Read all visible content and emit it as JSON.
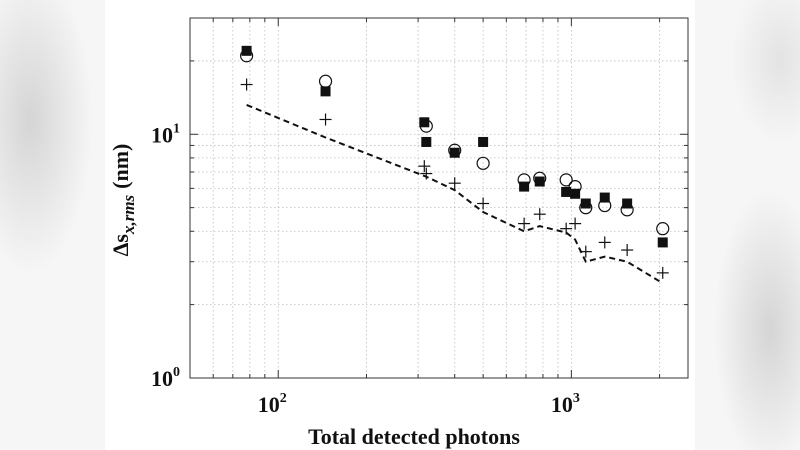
{
  "chart_data": {
    "type": "scatter",
    "xscale": "log",
    "yscale": "log",
    "xlim": [
      50,
      2500
    ],
    "ylim": [
      1,
      30
    ],
    "grid": true,
    "xlabel": "Total detected photons",
    "ylabel_main": "Δs",
    "ylabel_sub": "x,rms",
    "ylabel_unit": "(nm)",
    "xticks": [
      {
        "value": 100,
        "base": "10",
        "exp": "2"
      },
      {
        "value": 1000,
        "base": "10",
        "exp": "3"
      }
    ],
    "yticks": [
      {
        "value": 1,
        "base": "10",
        "exp": "0"
      },
      {
        "value": 10,
        "base": "10",
        "exp": "1"
      }
    ],
    "series": [
      {
        "marker": "square",
        "x": [
          78,
          145,
          315,
          320,
          400,
          500,
          690,
          780,
          960,
          1030,
          1120,
          1300,
          1550,
          2050
        ],
        "y": [
          22,
          15,
          11.2,
          9.3,
          8.4,
          9.3,
          6.1,
          6.4,
          5.8,
          5.7,
          5.2,
          5.5,
          5.2,
          3.6
        ]
      },
      {
        "marker": "circle",
        "x": [
          78,
          145,
          320,
          400,
          500,
          690,
          780,
          960,
          1030,
          1120,
          1300,
          1550,
          2050
        ],
        "y": [
          21,
          16.5,
          10.8,
          8.6,
          7.6,
          6.5,
          6.6,
          6.5,
          6.1,
          5.0,
          5.1,
          4.9,
          4.1
        ]
      },
      {
        "marker": "plus",
        "x": [
          78,
          145,
          315,
          320,
          400,
          500,
          690,
          780,
          960,
          1030,
          1120,
          1300,
          1550,
          2050
        ],
        "y": [
          16,
          11.5,
          7.4,
          6.9,
          6.3,
          5.2,
          4.3,
          4.7,
          4.1,
          4.3,
          3.3,
          3.6,
          3.35,
          2.7
        ]
      },
      {
        "marker": "dashed-line",
        "x": [
          78,
          145,
          320,
          400,
          500,
          690,
          780,
          960,
          1030,
          1120,
          1300,
          1550,
          2050
        ],
        "y": [
          13.2,
          9.7,
          6.7,
          5.9,
          4.8,
          4.0,
          4.2,
          3.95,
          3.7,
          3.0,
          3.15,
          3.0,
          2.45
        ]
      }
    ],
    "colors": {
      "marks": "#111111",
      "grid": "#bdbdbd",
      "axes": "#333333"
    }
  }
}
